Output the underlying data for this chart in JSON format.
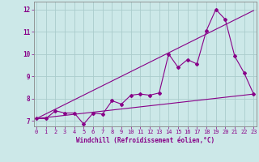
{
  "xlabel": "Windchill (Refroidissement éolien,°C)",
  "background_color": "#cce8e8",
  "grid_color": "#aacccc",
  "line_color": "#880088",
  "spine_color": "#888888",
  "x_ticks": [
    0,
    1,
    2,
    3,
    4,
    5,
    6,
    7,
    8,
    9,
    10,
    11,
    12,
    13,
    14,
    15,
    16,
    17,
    18,
    19,
    20,
    21,
    22,
    23
  ],
  "y_ticks": [
    7,
    8,
    9,
    10,
    11,
    12
  ],
  "xlim": [
    -0.3,
    23.3
  ],
  "ylim": [
    6.75,
    12.35
  ],
  "series1_x": [
    0,
    1,
    2,
    3,
    4,
    5,
    6,
    7,
    8,
    9,
    10,
    11,
    12,
    13,
    14,
    15,
    16,
    17,
    18,
    19,
    20,
    21,
    22,
    23
  ],
  "series1_y": [
    7.1,
    7.1,
    7.45,
    7.35,
    7.35,
    6.85,
    7.35,
    7.3,
    7.9,
    7.75,
    8.15,
    8.2,
    8.15,
    8.25,
    10.0,
    9.4,
    9.75,
    9.55,
    11.05,
    12.0,
    11.55,
    9.9,
    9.15,
    8.2
  ],
  "series2_x": [
    0,
    23
  ],
  "series2_y": [
    7.1,
    8.2
  ],
  "series3_x": [
    0,
    23
  ],
  "series3_y": [
    7.1,
    11.95
  ],
  "tick_fontsize": 5.0,
  "label_fontsize": 5.5,
  "xlabel_fontsize": 5.5
}
